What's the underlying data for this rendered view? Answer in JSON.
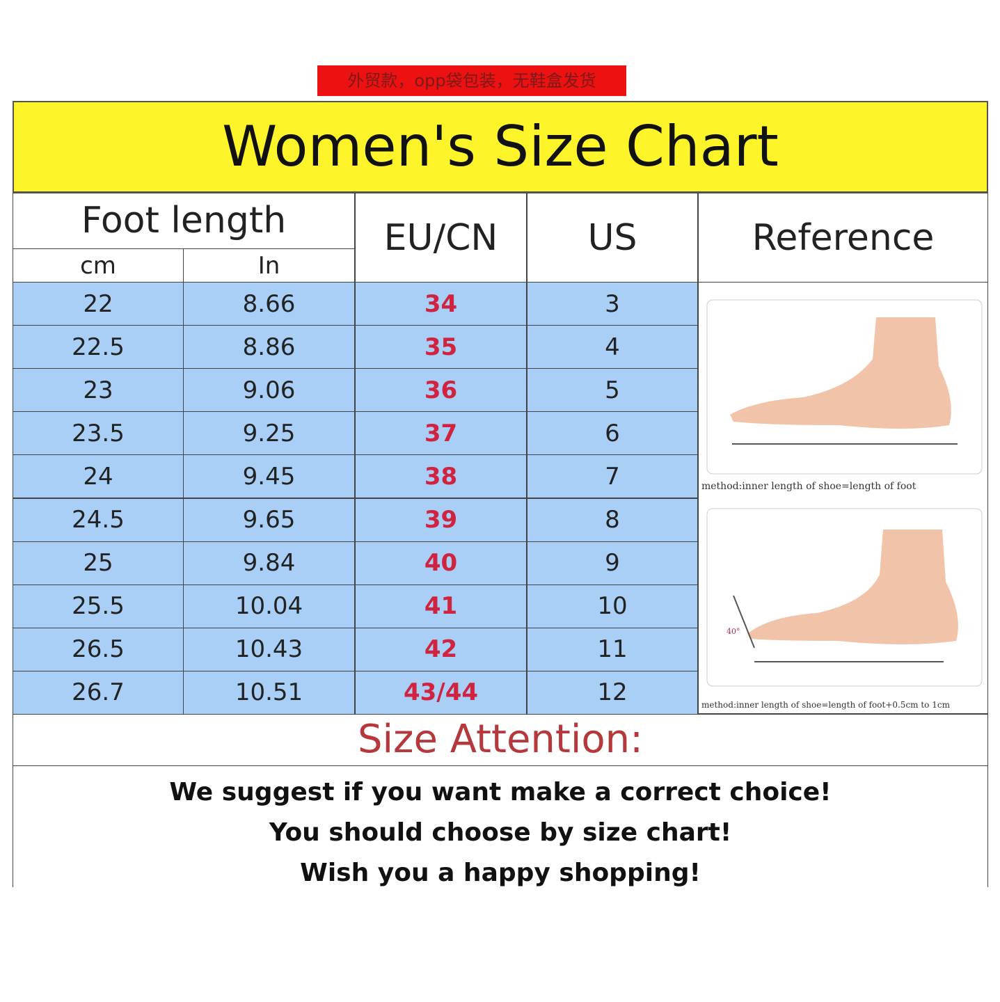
{
  "banner": "外贸款，opp袋包装，无鞋盒发货",
  "title": "Women's Size Chart",
  "headers": {
    "foot_length": "Foot length",
    "cm": "cm",
    "in": "In",
    "eu_cn": "EU/CN",
    "us": "US",
    "reference": "Reference"
  },
  "rows": [
    {
      "cm": "22",
      "in": "8.66",
      "eu": "34",
      "us": "3"
    },
    {
      "cm": "22.5",
      "in": "8.86",
      "eu": "35",
      "us": "4"
    },
    {
      "cm": "23",
      "in": "9.06",
      "eu": "36",
      "us": "5"
    },
    {
      "cm": "23.5",
      "in": "9.25",
      "eu": "37",
      "us": "6"
    },
    {
      "cm": "24",
      "in": "9.45",
      "eu": "38",
      "us": "7"
    },
    {
      "cm": "24.5",
      "in": "9.65",
      "eu": "39",
      "us": "8"
    },
    {
      "cm": "25",
      "in": "9.84",
      "eu": "40",
      "us": "9"
    },
    {
      "cm": "25.5",
      "in": "10.04",
      "eu": "41",
      "us": "10"
    },
    {
      "cm": "26.5",
      "in": "10.43",
      "eu": "42",
      "us": "11"
    },
    {
      "cm": "26.7",
      "in": "10.51",
      "eu": "43/44",
      "us": "12"
    }
  ],
  "reference": {
    "caption1": "method:inner length of shoe=length of foot",
    "caption2": "method:inner length of shoe=length of foot+0.5cm to 1cm",
    "angle": "40°"
  },
  "attention": "Size Attention:",
  "notes": [
    "We suggest if you want make a correct choice!",
    "You should choose by size chart!",
    "Wish you a happy shopping!"
  ],
  "colors": {
    "yellow": "#fdf52a",
    "blue": "#a9cff6",
    "eu_red": "#d0233f",
    "banner_red": "#ee1111"
  }
}
